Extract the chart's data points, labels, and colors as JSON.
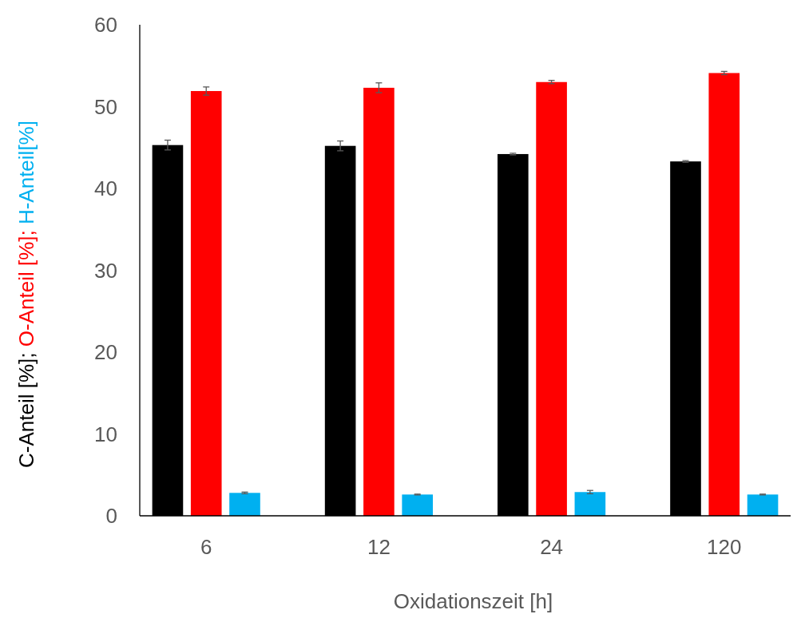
{
  "chart_data": {
    "type": "bar",
    "xlabel": "Oxidationszeit [h]",
    "ylabel": "C-Anteil [%]; O-Anteil [%]; H-Anteil[%]",
    "categories": [
      "6",
      "12",
      "24",
      "120"
    ],
    "series": [
      {
        "color": "#000000",
        "values": [
          45.3,
          45.2,
          44.2,
          43.3
        ],
        "errors": [
          0.6,
          0.6,
          0.1,
          0.1
        ]
      },
      {
        "color": "#ff0000",
        "values": [
          51.9,
          52.3,
          53.0,
          54.1
        ],
        "errors": [
          0.5,
          0.6,
          0.2,
          0.2
        ]
      },
      {
        "color": "#00b0f0",
        "values": [
          2.8,
          2.6,
          2.9,
          2.6
        ],
        "errors": [
          0.1,
          0.05,
          0.2,
          0.05
        ]
      }
    ],
    "ylim": [
      0,
      60
    ],
    "yticks": [
      0,
      10,
      20,
      30,
      40,
      50,
      60
    ],
    "grid": false
  }
}
